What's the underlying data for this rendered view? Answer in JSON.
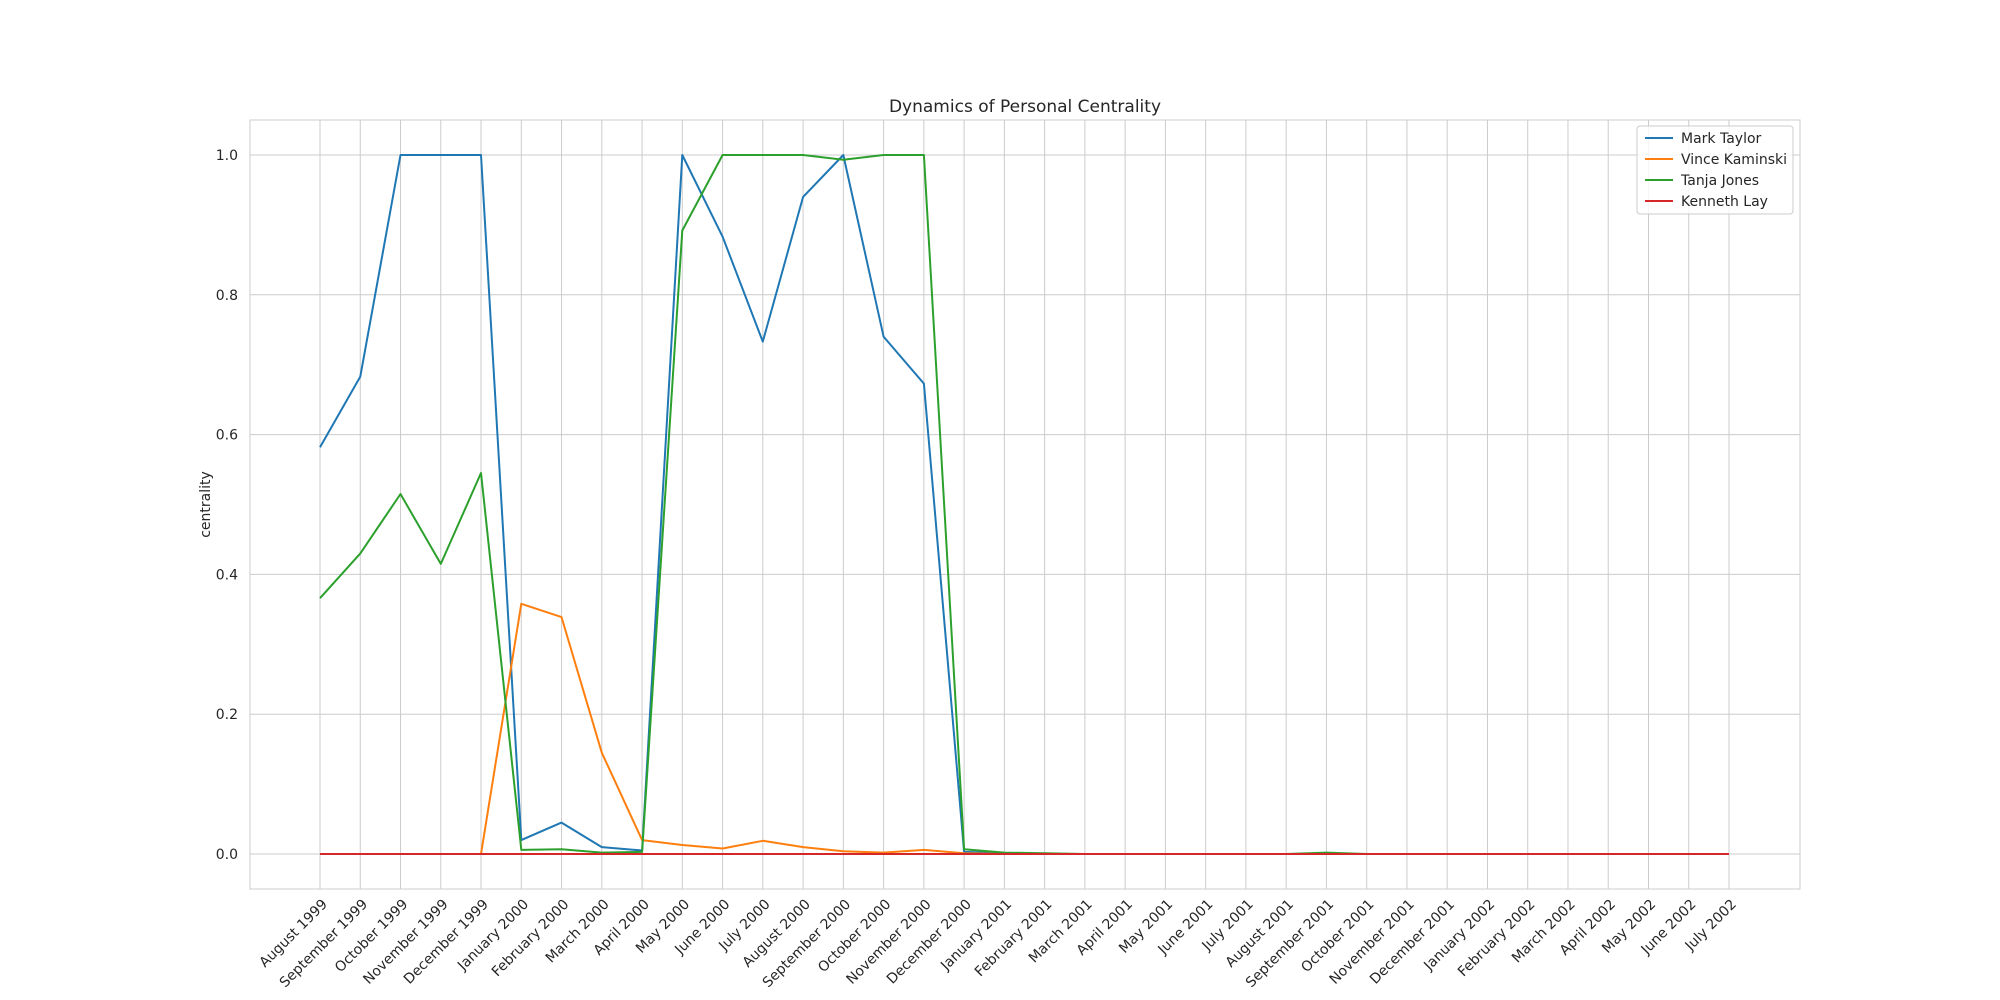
{
  "chart_data": {
    "type": "line",
    "title": "Dynamics of Personal Centrality",
    "ylabel": "centrality",
    "xlabel": "",
    "ylim": [
      -0.05,
      1.05
    ],
    "yticks": [
      0.0,
      0.2,
      0.4,
      0.6,
      0.8,
      1.0
    ],
    "yticklabels": [
      "0.0",
      "0.2",
      "0.4",
      "0.6",
      "0.8",
      "1.0"
    ],
    "grid": true,
    "legend_position": "top-right",
    "x": [
      "August 1999",
      "September 1999",
      "October 1999",
      "November 1999",
      "December 1999",
      "January 2000",
      "February 2000",
      "March 2000",
      "April 2000",
      "May 2000",
      "June 2000",
      "July 2000",
      "August 2000",
      "September 2000",
      "October 2000",
      "November 2000",
      "December 2000",
      "January 2001",
      "February 2001",
      "March 2001",
      "April 2001",
      "May 2001",
      "June 2001",
      "July 2001",
      "August 2001",
      "September 2001",
      "October 2001",
      "November 2001",
      "December 2001",
      "January 2002",
      "February 2002",
      "March 2002",
      "April 2002",
      "May 2002",
      "June 2002",
      "July 2002"
    ],
    "series": [
      {
        "name": "Mark Taylor",
        "color": "#1f77b4",
        "values": [
          0.582,
          0.683,
          1.0,
          1.0,
          1.0,
          0.02,
          0.045,
          0.01,
          0.005,
          1.0,
          0.883,
          0.733,
          0.94,
          1.0,
          0.74,
          0.673,
          0.003,
          0.001,
          0.0,
          0.0,
          0.0,
          0.0,
          0.0,
          0.0,
          0.0,
          0.0,
          0.0,
          0.0,
          0.0,
          0.0,
          0.0,
          0.0,
          0.0,
          0.0,
          0.0,
          0.0
        ]
      },
      {
        "name": "Vince Kaminski",
        "color": "#ff7f0e",
        "values": [
          0.0,
          0.0,
          0.0,
          0.0,
          0.0,
          0.358,
          0.339,
          0.145,
          0.02,
          0.013,
          0.008,
          0.019,
          0.01,
          0.004,
          0.002,
          0.006,
          0.001,
          0.0,
          0.0,
          0.0,
          0.0,
          0.0,
          0.0,
          0.0,
          0.0,
          0.0,
          0.0,
          0.0,
          0.0,
          0.0,
          0.0,
          0.0,
          0.0,
          0.0,
          0.0,
          0.0
        ]
      },
      {
        "name": "Tanja Jones",
        "color": "#2ca02c",
        "values": [
          0.366,
          0.43,
          0.515,
          0.415,
          0.545,
          0.006,
          0.007,
          0.002,
          0.003,
          0.892,
          1.0,
          1.0,
          1.0,
          0.993,
          1.0,
          1.0,
          0.007,
          0.002,
          0.001,
          0.0,
          0.0,
          0.0,
          0.0,
          0.0,
          0.0,
          0.002,
          0.0,
          0.0,
          0.0,
          0.0,
          0.0,
          0.0,
          0.0,
          0.0,
          0.0,
          0.0
        ]
      },
      {
        "name": "Kenneth Lay",
        "color": "#d62728",
        "values": [
          0.0,
          0.0,
          0.0,
          0.0,
          0.0,
          0.0,
          0.0,
          0.0,
          0.0,
          0.0,
          0.0,
          0.0,
          0.0,
          0.0,
          0.0,
          0.0,
          0.0,
          0.0,
          0.0,
          0.0,
          0.0,
          0.0,
          0.0,
          0.0,
          0.0,
          0.0,
          0.0,
          0.0,
          0.0,
          0.0,
          0.0,
          0.0,
          0.0,
          0.0,
          0.0,
          0.0
        ]
      }
    ]
  },
  "colors": {
    "grid": "#cccccc",
    "frame": "#cccccc",
    "text": "#262626",
    "background": "#ffffff"
  }
}
